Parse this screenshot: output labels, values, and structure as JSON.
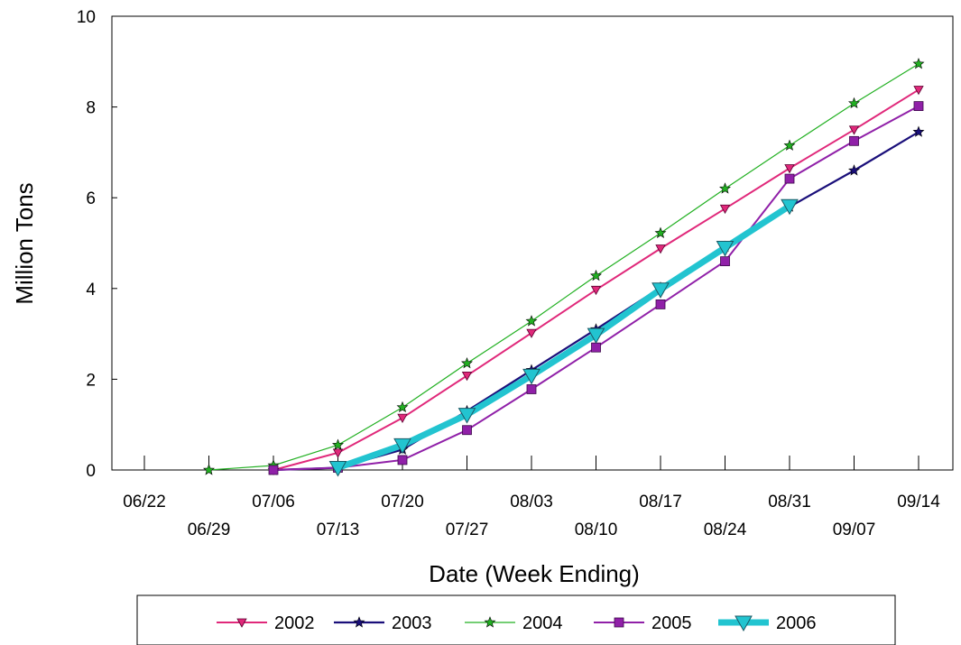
{
  "chart_data": {
    "type": "line",
    "title": "",
    "xlabel": "Date (Week Ending)",
    "ylabel": "Million Tons",
    "ylim": [
      0,
      10
    ],
    "yticks": [
      "0",
      "2",
      "4",
      "6",
      "8",
      "10"
    ],
    "categories": [
      "06/22",
      "06/29",
      "07/06",
      "07/13",
      "07/20",
      "07/27",
      "08/03",
      "08/10",
      "08/17",
      "08/24",
      "08/31",
      "09/07",
      "09/14"
    ],
    "grid": false,
    "legend_position": "bottom",
    "series": [
      {
        "name": "2002",
        "color": "#e0287a",
        "marker": "triangle-down",
        "points": [
          [
            3,
            0
          ],
          [
            4,
            0.38
          ],
          [
            5,
            1.15
          ],
          [
            6,
            2.08
          ],
          [
            7,
            3.02
          ],
          [
            8,
            3.97
          ],
          [
            9,
            4.88
          ],
          [
            10,
            5.76
          ],
          [
            11,
            6.65
          ],
          [
            12,
            7.5
          ],
          [
            13,
            8.38
          ]
        ]
      },
      {
        "name": "2003",
        "color": "#1a0f7a",
        "marker": "star",
        "points": [
          [
            3,
            0
          ],
          [
            4,
            0.05
          ],
          [
            5,
            0.45
          ],
          [
            6,
            1.3
          ],
          [
            7,
            2.2
          ],
          [
            8,
            3.1
          ],
          [
            9,
            4.02
          ],
          [
            10,
            4.92
          ],
          [
            11,
            5.8
          ],
          [
            12,
            6.6
          ],
          [
            13,
            7.45
          ]
        ]
      },
      {
        "name": "2004",
        "color": "#22b022",
        "marker": "star",
        "points": [
          [
            2,
            0
          ],
          [
            3,
            0.1
          ],
          [
            4,
            0.55
          ],
          [
            5,
            1.38
          ],
          [
            6,
            2.35
          ],
          [
            7,
            3.28
          ],
          [
            8,
            4.28
          ],
          [
            9,
            5.22
          ],
          [
            10,
            6.2
          ],
          [
            11,
            7.15
          ],
          [
            12,
            8.08
          ],
          [
            13,
            8.95
          ]
        ]
      },
      {
        "name": "2005",
        "color": "#9020a8",
        "marker": "square",
        "points": [
          [
            3,
            0
          ],
          [
            4,
            0.05
          ],
          [
            5,
            0.22
          ],
          [
            6,
            0.88
          ],
          [
            7,
            1.78
          ],
          [
            8,
            2.7
          ],
          [
            9,
            3.65
          ],
          [
            10,
            4.6
          ],
          [
            11,
            6.42
          ],
          [
            12,
            7.25
          ],
          [
            13,
            8.02
          ]
        ]
      },
      {
        "name": "2006",
        "color": "#22c4d0",
        "marker": "triangle-down-large",
        "points": [
          [
            4,
            0.05
          ],
          [
            5,
            0.55
          ],
          [
            6,
            1.22
          ],
          [
            7,
            2.08
          ],
          [
            8,
            2.98
          ],
          [
            9,
            3.98
          ],
          [
            10,
            4.9
          ],
          [
            11,
            5.82
          ]
        ]
      }
    ]
  }
}
